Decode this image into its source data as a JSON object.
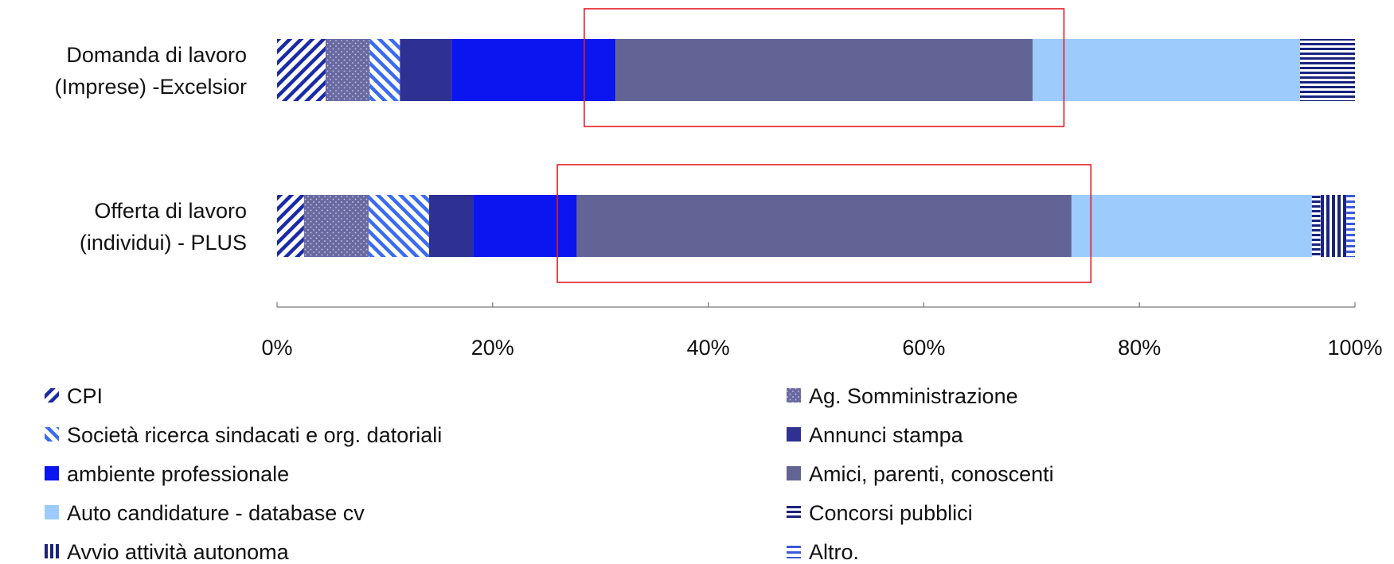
{
  "chart_data": {
    "type": "bar",
    "orientation": "horizontal",
    "stacked": "percent",
    "categories": [
      [
        "Domanda di lavoro",
        "(Imprese) -Excelsior"
      ],
      [
        "Offerta di lavoro",
        "(individui) - PLUS"
      ]
    ],
    "xlim": [
      0,
      100
    ],
    "x_ticks": [
      "0%",
      "20%",
      "40%",
      "60%",
      "80%",
      "100%"
    ],
    "grid": false,
    "legend_position": "bottom",
    "highlight": [
      {
        "category_index": 0,
        "from": 28.5,
        "to": 73,
        "color": "#e51c23"
      },
      {
        "category_index": 1,
        "from": 26,
        "to": 75.5,
        "color": "#e51c23"
      }
    ],
    "series": [
      {
        "name": "CPI",
        "values": [
          4.5,
          2.5
        ],
        "color": "#1a2aa8",
        "pattern": "diag-down"
      },
      {
        "name": "Ag. Somministrazione",
        "values": [
          4.1,
          6.0
        ],
        "color": "#6a6aa2",
        "pattern": "dots"
      },
      {
        "name": "Società ricerca sindacati e org. datoriali",
        "values": [
          2.8,
          5.6
        ],
        "color": "#3a6bf0",
        "pattern": "diag-up"
      },
      {
        "name": "Annunci stampa",
        "values": [
          4.8,
          4.1
        ],
        "color": "#2e3192",
        "pattern": "solid"
      },
      {
        "name": "ambiente professionale",
        "values": [
          15.2,
          9.6
        ],
        "color": "#0a15f0",
        "pattern": "solid"
      },
      {
        "name": "Amici, parenti, conoscenti",
        "values": [
          38.7,
          45.9
        ],
        "color": "#636496",
        "pattern": "solid"
      },
      {
        "name": "Auto candidature - database cv",
        "values": [
          24.8,
          22.3
        ],
        "color": "#9dcbfb",
        "pattern": "solid"
      },
      {
        "name": "Concorsi pubblici",
        "values": [
          5.1,
          0.8
        ],
        "color": "#1a237e",
        "pattern": "hlines"
      },
      {
        "name": "Avvio attività autonoma",
        "values": [
          0,
          2.4
        ],
        "color": "#1a237e",
        "pattern": "vlines"
      },
      {
        "name": "Altro.",
        "values": [
          0,
          0.8
        ],
        "color": "#3a5ad8",
        "pattern": "hlines-light"
      }
    ]
  }
}
